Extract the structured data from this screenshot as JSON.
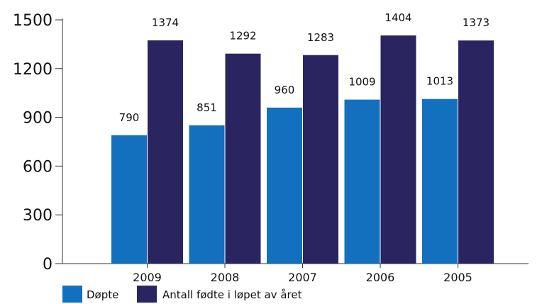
{
  "chart_data": {
    "type": "bar",
    "categories": [
      "2009",
      "2008",
      "2007",
      "2006",
      "2005"
    ],
    "series": [
      {
        "name": "Døpte",
        "values": [
          790,
          851,
          960,
          1009,
          1013
        ],
        "color": "#1270BE"
      },
      {
        "name": "Antall fødte i løpet av året",
        "values": [
          1374,
          1292,
          1283,
          1404,
          1373
        ],
        "color": "#2A2560"
      }
    ],
    "yticks": [
      "0",
      "300",
      "600",
      "900",
      "1200",
      "1500"
    ],
    "ylim": [
      0,
      1500
    ],
    "grid": false,
    "legend_position": "bottom-left",
    "data_labels": true
  }
}
